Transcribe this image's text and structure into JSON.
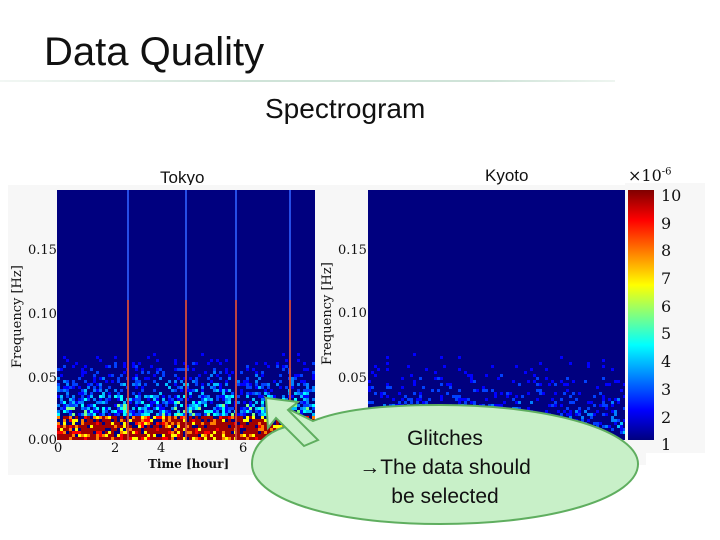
{
  "slide": {
    "title": "Data Quality",
    "subtitle": "Spectrogram"
  },
  "panels": [
    {
      "label": "Tokyo",
      "ylabel": "Frequency [Hz]",
      "xlabel": "Time [hour]",
      "yticks": [
        "0.15",
        "0.10",
        "0.05",
        "0.00"
      ],
      "xticks": [
        "0",
        "2",
        "4",
        "6"
      ]
    },
    {
      "label": "Kyoto",
      "ylabel": "Frequency [Hz]",
      "yticks": [
        "0.15",
        "0.10",
        "0.05"
      ]
    }
  ],
  "colorbar": {
    "multiplier_base": "×10",
    "multiplier_exp": "-6",
    "ticks": [
      "10",
      "9",
      "8",
      "7",
      "6",
      "5",
      "4",
      "3",
      "2",
      "1"
    ]
  },
  "callout": {
    "line1": "Glitches",
    "line2": "→The data should",
    "line3": "be selected"
  },
  "colors": {
    "background": "#00007f",
    "callout_fill": "#c8f0c8",
    "callout_border": "#5fae5f"
  }
}
